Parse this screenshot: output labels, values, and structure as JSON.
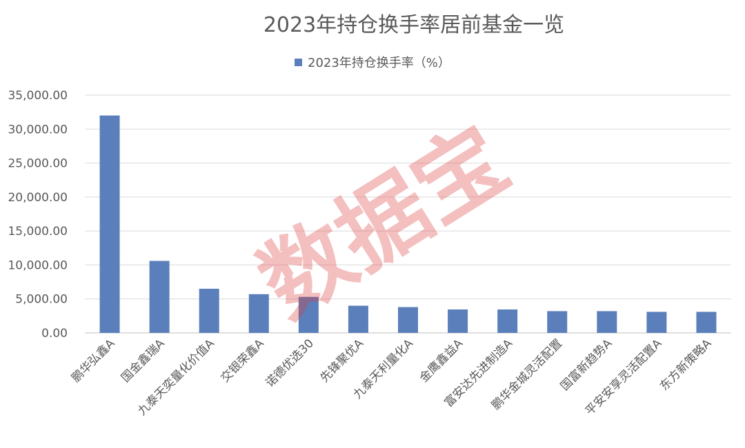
{
  "watermark": "数据宝",
  "chart_data": {
    "type": "bar",
    "title": "2023年持仓换手率居前基金一览",
    "legend_position": "top",
    "grid": true,
    "bar_color": "#5b7fba",
    "categories": [
      "鹏华弘鑫A",
      "国金鑫瑞A",
      "九泰天奕量化价值A",
      "交银荣鑫A",
      "诺德优选30",
      "先锋聚优A",
      "九泰天利量化A",
      "金鹰鑫益A",
      "富安达先进制造A",
      "鹏华金城灵活配置",
      "国富新趋势A",
      "平安安享灵活配置A",
      "东方新策略A"
    ],
    "series": [
      {
        "name": "2023年持仓换手率（%）",
        "values": [
          32000,
          10600,
          6500,
          5700,
          5300,
          4000,
          3800,
          3450,
          3450,
          3200,
          3200,
          3100,
          3100
        ]
      }
    ],
    "ylim": [
      0,
      35000
    ],
    "yticks": [
      "0.00",
      "5,000.00",
      "10,000.00",
      "15,000.00",
      "20,000.00",
      "25,000.00",
      "30,000.00",
      "35,000.00"
    ],
    "ytick_values": [
      0,
      5000,
      10000,
      15000,
      20000,
      25000,
      30000,
      35000
    ]
  }
}
